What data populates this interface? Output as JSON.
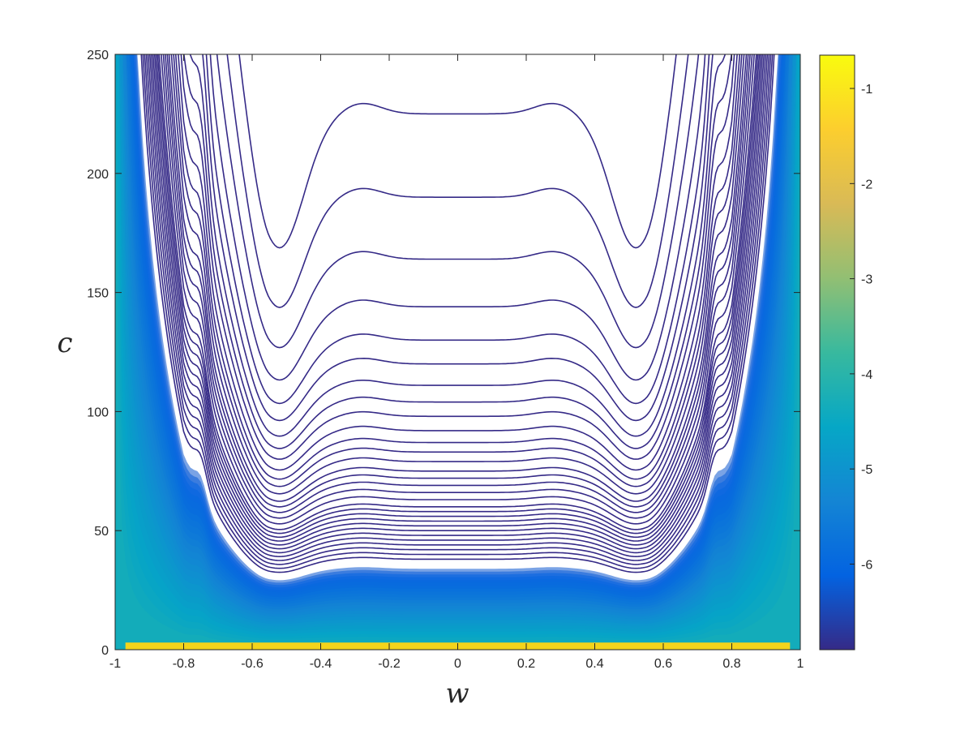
{
  "chart_data": {
    "type": "contour",
    "xlabel": "w",
    "ylabel": "c",
    "xlim": [
      -1,
      1
    ],
    "ylim": [
      0,
      250
    ],
    "x_ticks": [
      -1,
      -0.8,
      -0.6,
      -0.4,
      -0.2,
      0,
      0.2,
      0.4,
      0.6,
      0.8,
      1
    ],
    "x_tick_labels": [
      "-1",
      "-0.8",
      "-0.6",
      "-0.4",
      "-0.2",
      "0",
      "0.2",
      "0.4",
      "0.6",
      "0.8",
      "1"
    ],
    "y_ticks": [
      0,
      50,
      100,
      150,
      200,
      250
    ],
    "y_tick_labels": [
      "0",
      "50",
      "100",
      "150",
      "200",
      "250"
    ],
    "colorbar": {
      "range": [
        -6.9,
        -0.65
      ],
      "ticks": [
        -6,
        -5,
        -4,
        -3,
        -2,
        -1
      ],
      "tick_labels": [
        "-6",
        "-5",
        "-4",
        "-3",
        "-2",
        "-1"
      ],
      "colormap": "parula",
      "colors": [
        "#352a87",
        "#0363e1",
        "#1485d4",
        "#06a7c6",
        "#38b99e",
        "#92bf73",
        "#d9ba56",
        "#fcce2e",
        "#f9fb0e"
      ]
    },
    "contour_level_centers_c": [
      225,
      190,
      164,
      144,
      130,
      120,
      111,
      104,
      98,
      92,
      87,
      83,
      79,
      75,
      72,
      69,
      66,
      63,
      60,
      58,
      56,
      54,
      52,
      50,
      48,
      46,
      44,
      42,
      40,
      38
    ],
    "contour_dip_positions_w": [
      -0.52,
      0.52
    ],
    "contour_peak_positions_w": [
      -0.75,
      0.75
    ],
    "grid": false
  }
}
